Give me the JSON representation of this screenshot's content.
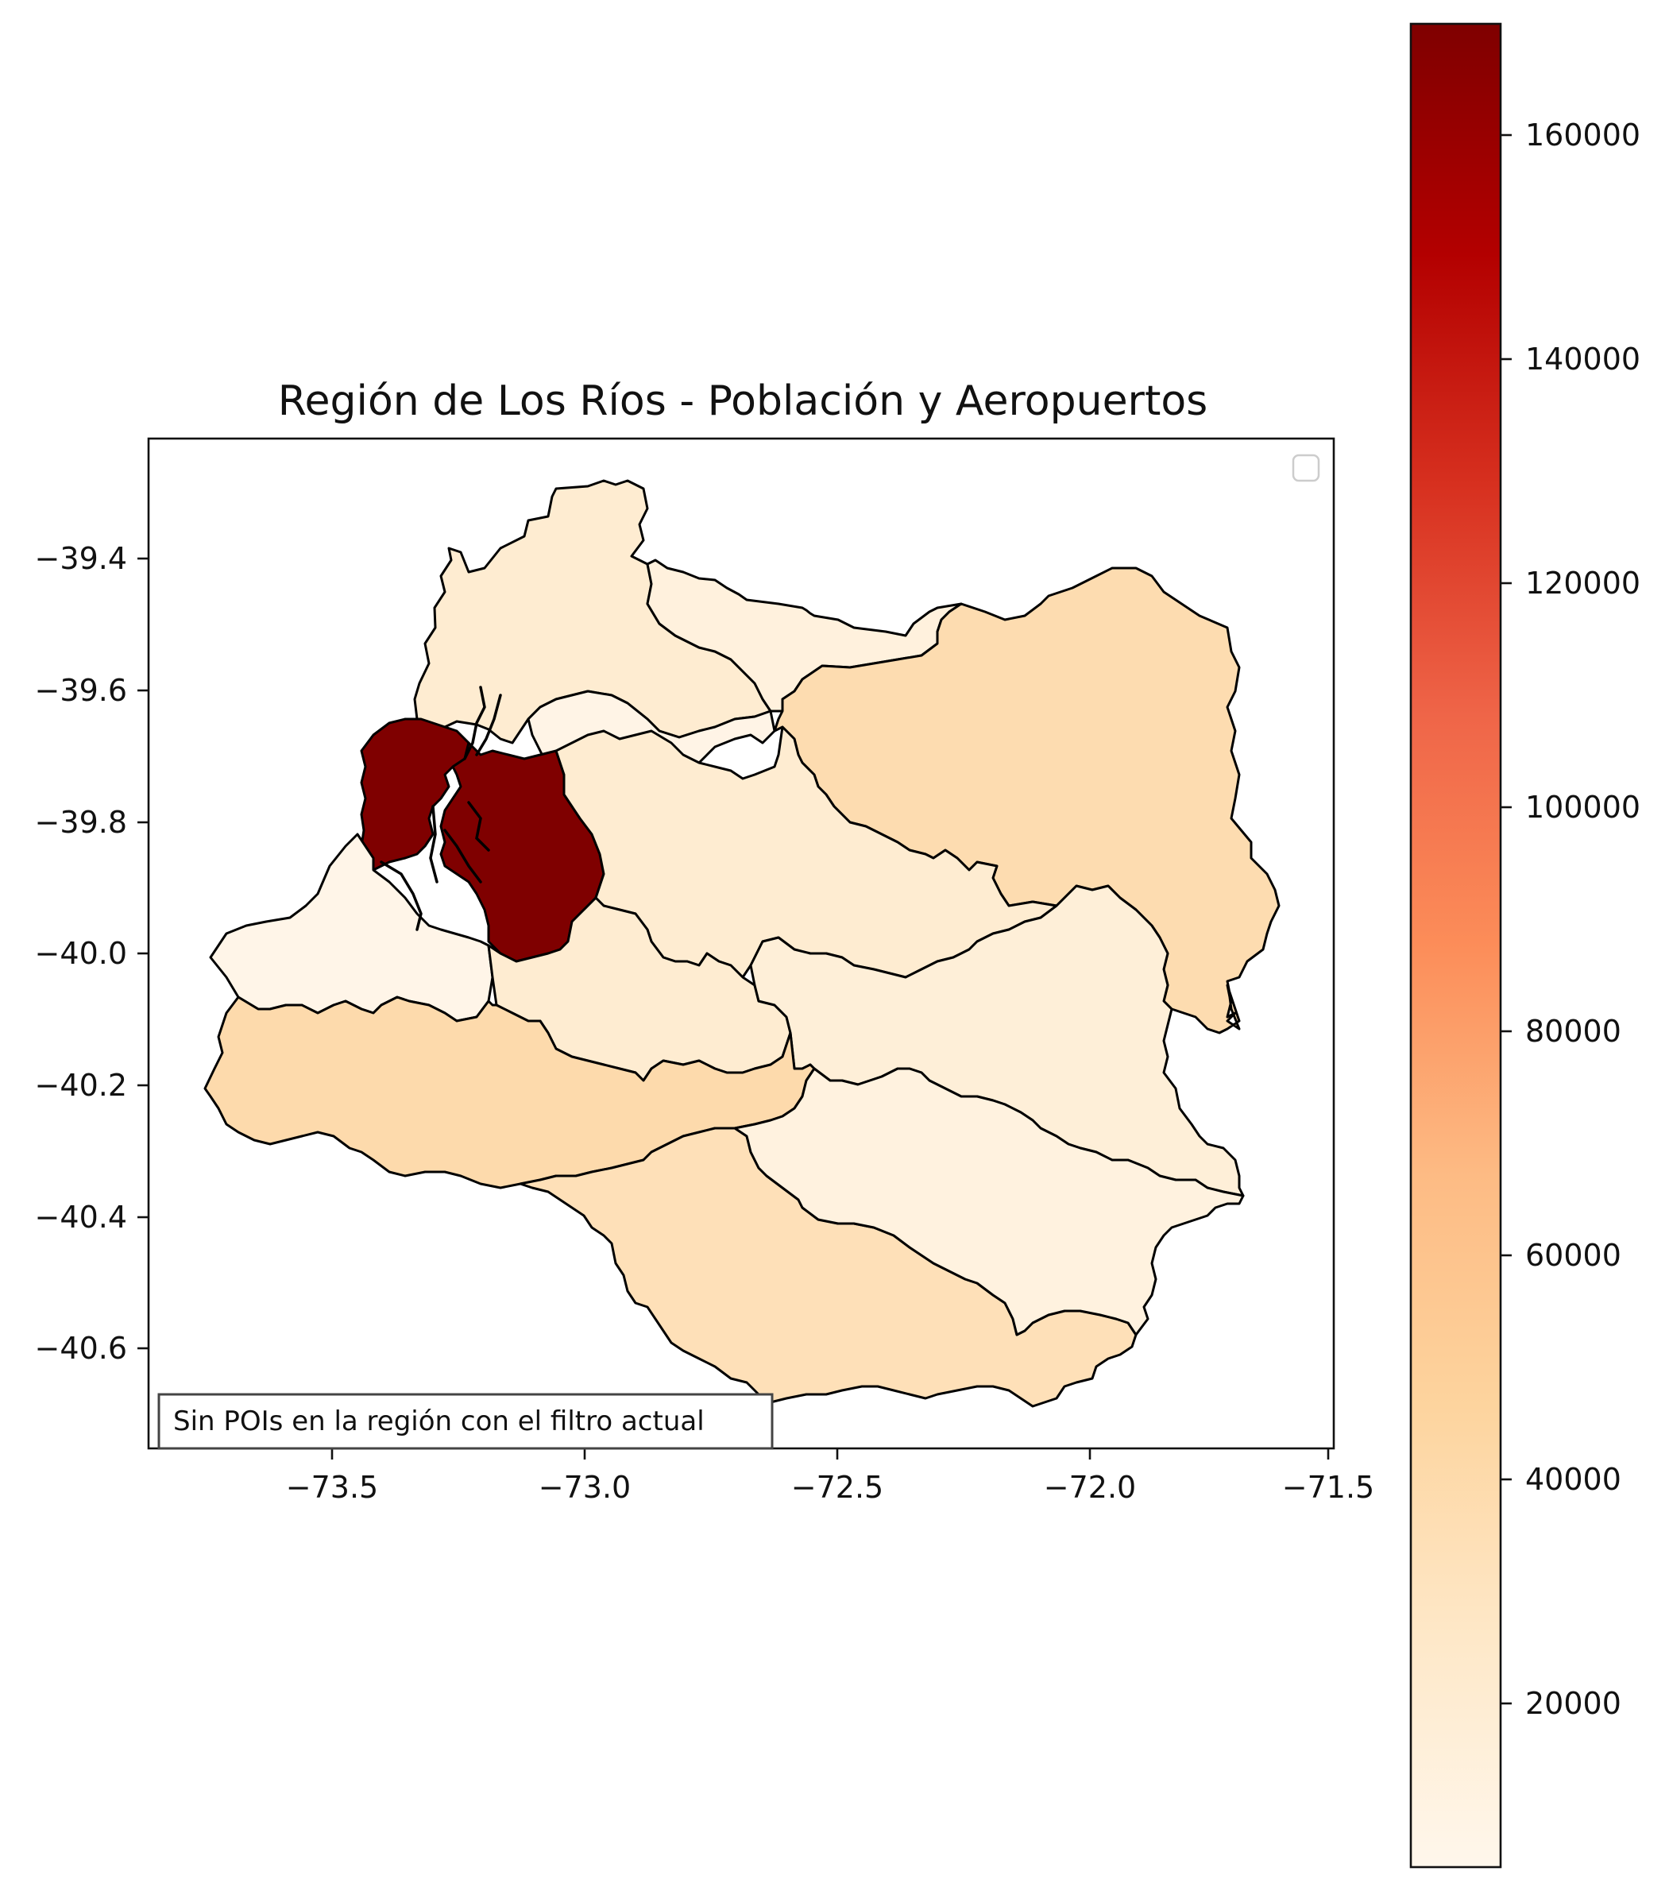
{
  "map": {
    "title": "Región de Los Ríos - Población y Aeropuertos",
    "note": "Sin POIs en la región con el filtro actual",
    "legend_empty": true,
    "x_ticks": [
      "−73.5",
      "−73.0",
      "−72.5",
      "−72.0",
      "−71.5"
    ],
    "y_ticks": [
      "−39.4",
      "−39.6",
      "−39.8",
      "−40.0",
      "−40.2",
      "−40.4",
      "−40.6"
    ],
    "colorbar": {
      "ticks": [
        "20000",
        "40000",
        "60000",
        "80000",
        "100000",
        "120000",
        "140000",
        "160000"
      ],
      "min": 5500,
      "max": 170000,
      "colormap": "OrRd",
      "colors": [
        "#fff7ec",
        "#fee8c8",
        "#fdd49e",
        "#fdbb84",
        "#fc8d59",
        "#ef6548",
        "#d7301f",
        "#b30000",
        "#7f0000"
      ]
    },
    "communes": [
      {
        "id": "north-west",
        "population": 21000
      },
      {
        "id": "north-center",
        "population": 14000
      },
      {
        "id": "east",
        "population": 38000
      },
      {
        "id": "center-small",
        "population": 9000
      },
      {
        "id": "valdivia-west",
        "population": 170000
      },
      {
        "id": "valdivia-east",
        "population": 170000
      },
      {
        "id": "center",
        "population": 21000
      },
      {
        "id": "west",
        "population": 8000
      },
      {
        "id": "south-center",
        "population": 21000
      },
      {
        "id": "southeast",
        "population": 17000
      },
      {
        "id": "southwest",
        "population": 40000
      },
      {
        "id": "south",
        "population": 34000
      },
      {
        "id": "south-east-lower",
        "population": 13000
      }
    ]
  }
}
